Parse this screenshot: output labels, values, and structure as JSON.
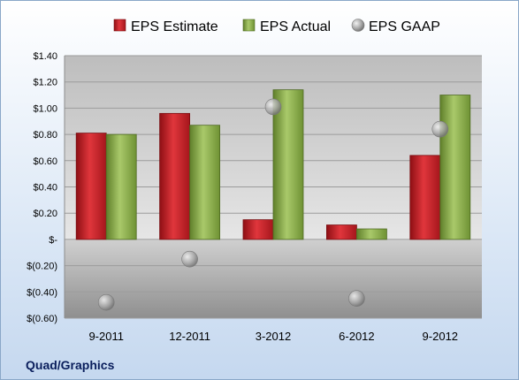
{
  "company": "Quad/Graphics",
  "chart_data": {
    "type": "bar",
    "categories": [
      "9-2011",
      "12-2011",
      "3-2012",
      "6-2012",
      "9-2012"
    ],
    "series": [
      {
        "name": "EPS Estimate",
        "kind": "bar",
        "color": "#cc2229",
        "values": [
          0.81,
          0.96,
          0.15,
          0.11,
          0.64
        ]
      },
      {
        "name": "EPS Actual",
        "kind": "bar",
        "color": "#8aad4a",
        "values": [
          0.8,
          0.87,
          1.14,
          0.08,
          1.1
        ]
      },
      {
        "name": "EPS GAAP",
        "kind": "scatter",
        "color": "#9a9a9a",
        "values": [
          -0.48,
          -0.15,
          1.01,
          -0.45,
          0.84
        ]
      }
    ],
    "ylim": [
      -0.6,
      1.4
    ],
    "yticks": [
      {
        "value": 1.4,
        "label": "$1.40"
      },
      {
        "value": 1.2,
        "label": "$1.20"
      },
      {
        "value": 1.0,
        "label": "$1.00"
      },
      {
        "value": 0.8,
        "label": "$0.80"
      },
      {
        "value": 0.6,
        "label": "$0.60"
      },
      {
        "value": 0.4,
        "label": "$0.40"
      },
      {
        "value": 0.2,
        "label": "$0.20"
      },
      {
        "value": 0.0,
        "label": "$-"
      },
      {
        "value": -0.2,
        "label": "$(0.20)"
      },
      {
        "value": -0.4,
        "label": "$(0.40)"
      },
      {
        "value": -0.6,
        "label": "$(0.60)"
      }
    ],
    "grid": true,
    "legend": "top"
  }
}
